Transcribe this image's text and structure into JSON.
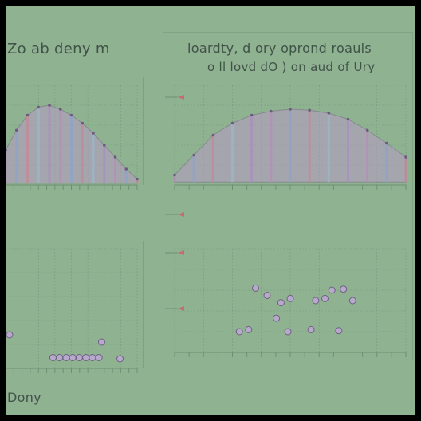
{
  "background_color": "#8fb391",
  "frame_color": "#000000",
  "line_color": "#6f8f74",
  "point_color": "#b7a9c9",
  "marker_color": "#c96a72",
  "left_panel": {
    "title": "Zo ab deny m",
    "footer": "Dony"
  },
  "right_panel": {
    "title_line1": "loardty, d ory oprond roauls",
    "title_line2": "o ll lovd dO  ) on aud of Ury",
    "footer": ""
  },
  "chart_data": [
    {
      "type": "area",
      "panel": "left-top",
      "x": [
        0,
        1,
        2,
        3,
        4,
        5,
        6,
        7,
        8,
        9,
        10,
        11,
        12
      ],
      "values": [
        0.35,
        0.55,
        0.7,
        0.78,
        0.8,
        0.76,
        0.7,
        0.62,
        0.52,
        0.4,
        0.28,
        0.16,
        0.06
      ],
      "xlim": [
        0,
        12
      ],
      "ylim": [
        0,
        1
      ],
      "grid": true
    },
    {
      "type": "scatter",
      "panel": "left-bottom",
      "x": [
        0.3,
        7.3,
        8.7,
        3.6,
        4.1,
        4.6,
        5.1,
        5.6,
        6.1,
        6.6,
        7.1
      ],
      "y": [
        0.28,
        0.22,
        0.08,
        0.09,
        0.09,
        0.09,
        0.09,
        0.09,
        0.09,
        0.09,
        0.09
      ],
      "xlim": [
        0,
        10
      ],
      "ylim": [
        0,
        1
      ],
      "grid": true
    },
    {
      "type": "area",
      "panel": "right-top",
      "x": [
        0,
        1,
        2,
        3,
        4,
        5,
        6,
        7,
        8,
        9,
        10,
        11,
        12
      ],
      "values": [
        0.1,
        0.3,
        0.5,
        0.62,
        0.7,
        0.74,
        0.76,
        0.75,
        0.72,
        0.66,
        0.55,
        0.42,
        0.28
      ],
      "xlim": [
        0,
        12
      ],
      "ylim": [
        0,
        1
      ],
      "grid": true
    },
    {
      "type": "scatter",
      "panel": "right-bottom",
      "x": [
        3.5,
        4.0,
        4.6,
        5.0,
        6.1,
        6.5,
        6.8,
        7.3,
        7.7,
        4.4,
        2.8,
        3.2,
        4.9,
        5.9,
        7.1
      ],
      "y": [
        0.62,
        0.55,
        0.48,
        0.52,
        0.5,
        0.52,
        0.6,
        0.61,
        0.5,
        0.33,
        0.2,
        0.22,
        0.2,
        0.22,
        0.21
      ],
      "xlim": [
        0,
        10
      ],
      "ylim": [
        0,
        1
      ],
      "grid": true
    }
  ]
}
